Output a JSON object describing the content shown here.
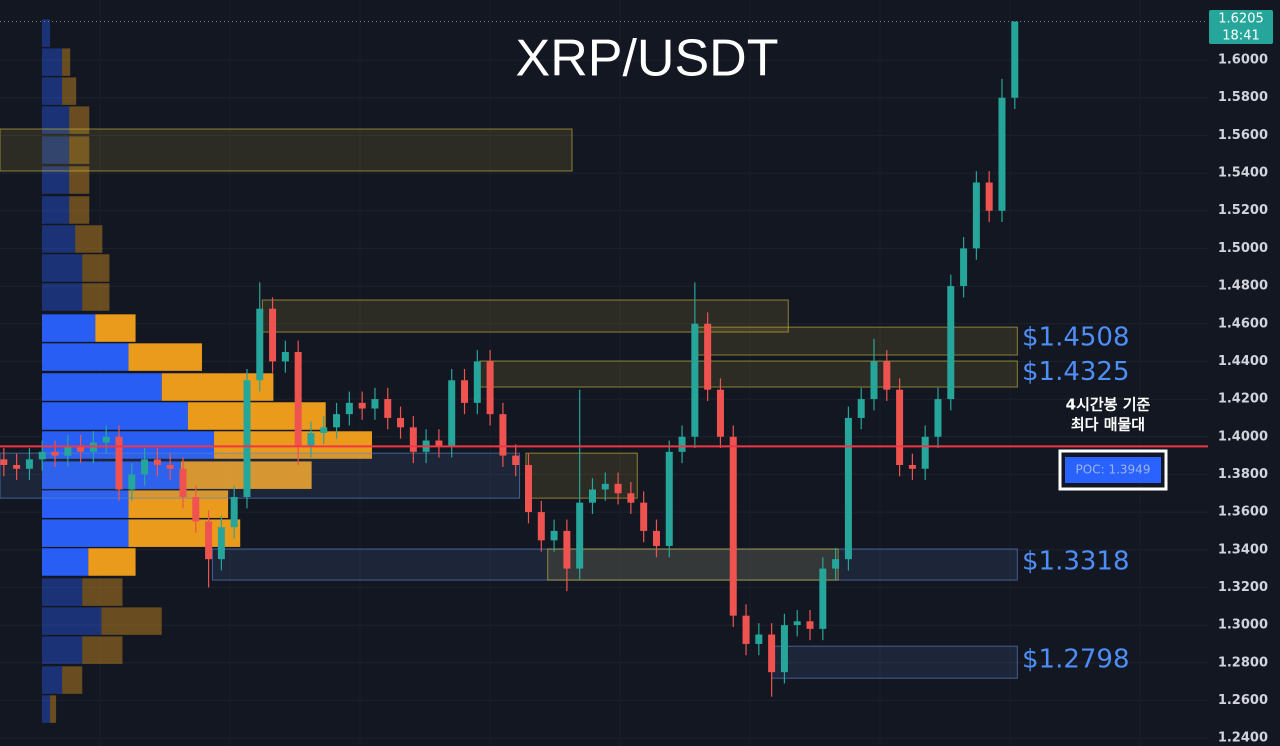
{
  "chart_data": {
    "type": "candlestick",
    "title": "XRP/USDT",
    "open": [
      1.388,
      1.385,
      1.383,
      1.388,
      1.392,
      1.39,
      1.395,
      1.392,
      1.397,
      1.4,
      1.372,
      1.38,
      1.388,
      1.385,
      1.383,
      1.368,
      1.355,
      1.335,
      1.352,
      1.368,
      1.43,
      1.468,
      1.44,
      1.445,
      1.395,
      1.402,
      1.405,
      1.412,
      1.418,
      1.415,
      1.42,
      1.41,
      1.405,
      1.392,
      1.398,
      1.395,
      1.43,
      1.418,
      1.44,
      1.412,
      1.39,
      1.385,
      1.36,
      1.345,
      1.35,
      1.33,
      1.365,
      1.372,
      1.375,
      1.37,
      1.365,
      1.35,
      1.342,
      1.392,
      1.4,
      1.46,
      1.425,
      1.4,
      1.305,
      1.29,
      1.295,
      1.275,
      1.3,
      1.302,
      1.298,
      1.33,
      1.335,
      1.41,
      1.42,
      1.44,
      1.425,
      1.385,
      1.383,
      1.4,
      1.42,
      1.48,
      1.5,
      1.535,
      1.52,
      1.58
    ],
    "high": [
      1.394,
      1.391,
      1.394,
      1.398,
      1.398,
      1.401,
      1.401,
      1.403,
      1.406,
      1.406,
      1.386,
      1.394,
      1.394,
      1.391,
      1.389,
      1.374,
      1.361,
      1.358,
      1.374,
      1.436,
      1.482,
      1.474,
      1.451,
      1.451,
      1.408,
      1.411,
      1.418,
      1.424,
      1.424,
      1.426,
      1.426,
      1.416,
      1.411,
      1.404,
      1.404,
      1.436,
      1.436,
      1.446,
      1.446,
      1.418,
      1.396,
      1.391,
      1.366,
      1.356,
      1.356,
      1.425,
      1.378,
      1.381,
      1.381,
      1.376,
      1.371,
      1.356,
      1.398,
      1.406,
      1.482,
      1.466,
      1.431,
      1.406,
      1.311,
      1.301,
      1.301,
      1.306,
      1.308,
      1.308,
      1.336,
      1.341,
      1.416,
      1.426,
      1.452,
      1.446,
      1.431,
      1.391,
      1.406,
      1.426,
      1.486,
      1.506,
      1.541,
      1.541,
      1.59,
      1.6205
    ],
    "low": [
      1.379,
      1.377,
      1.377,
      1.382,
      1.384,
      1.384,
      1.386,
      1.386,
      1.391,
      1.366,
      1.366,
      1.374,
      1.379,
      1.377,
      1.362,
      1.349,
      1.32,
      1.329,
      1.346,
      1.362,
      1.424,
      1.434,
      1.434,
      1.385,
      1.389,
      1.396,
      1.399,
      1.406,
      1.409,
      1.409,
      1.404,
      1.399,
      1.386,
      1.386,
      1.389,
      1.389,
      1.412,
      1.412,
      1.406,
      1.384,
      1.379,
      1.354,
      1.339,
      1.339,
      1.318,
      1.324,
      1.359,
      1.366,
      1.364,
      1.359,
      1.344,
      1.336,
      1.336,
      1.386,
      1.394,
      1.419,
      1.394,
      1.299,
      1.284,
      1.284,
      1.262,
      1.269,
      1.294,
      1.292,
      1.292,
      1.324,
      1.329,
      1.404,
      1.414,
      1.419,
      1.379,
      1.377,
      1.377,
      1.394,
      1.414,
      1.474,
      1.494,
      1.514,
      1.514,
      1.574
    ],
    "close": [
      1.385,
      1.383,
      1.388,
      1.392,
      1.39,
      1.395,
      1.392,
      1.397,
      1.4,
      1.372,
      1.38,
      1.388,
      1.385,
      1.383,
      1.368,
      1.355,
      1.335,
      1.352,
      1.368,
      1.43,
      1.468,
      1.44,
      1.445,
      1.395,
      1.402,
      1.405,
      1.412,
      1.418,
      1.415,
      1.42,
      1.41,
      1.405,
      1.392,
      1.398,
      1.395,
      1.43,
      1.418,
      1.44,
      1.412,
      1.39,
      1.385,
      1.36,
      1.345,
      1.35,
      1.33,
      1.365,
      1.372,
      1.375,
      1.37,
      1.365,
      1.35,
      1.342,
      1.392,
      1.4,
      1.46,
      1.425,
      1.4,
      1.305,
      1.29,
      1.295,
      1.275,
      1.3,
      1.302,
      1.298,
      1.33,
      1.335,
      1.41,
      1.42,
      1.44,
      1.425,
      1.385,
      1.383,
      1.4,
      1.42,
      1.48,
      1.5,
      1.535,
      1.52,
      1.58,
      1.6205
    ],
    "up_color": "#26a69a",
    "down_color": "#ef5350",
    "xlim": [
      -0.3,
      94.1
    ],
    "ylim": [
      1.2358,
      1.6319
    ],
    "yticks": [
      {
        "value": 1.24,
        "label": "1.2400"
      },
      {
        "value": 1.26,
        "label": "1.2600"
      },
      {
        "value": 1.28,
        "label": "1.2800"
      },
      {
        "value": 1.3,
        "label": "1.3000"
      },
      {
        "value": 1.32,
        "label": "1.3200"
      },
      {
        "value": 1.34,
        "label": "1.3400"
      },
      {
        "value": 1.36,
        "label": "1.3600"
      },
      {
        "value": 1.38,
        "label": "1.3800"
      },
      {
        "value": 1.4,
        "label": "1.4000"
      },
      {
        "value": 1.42,
        "label": "1.4200"
      },
      {
        "value": 1.44,
        "label": "1.4400"
      },
      {
        "value": 1.46,
        "label": "1.4600"
      },
      {
        "value": 1.48,
        "label": "1.4800"
      },
      {
        "value": 1.5,
        "label": "1.5000"
      },
      {
        "value": 1.52,
        "label": "1.5200"
      },
      {
        "value": 1.54,
        "label": "1.5400"
      },
      {
        "value": 1.56,
        "label": "1.5600"
      },
      {
        "value": 1.58,
        "label": "1.5800"
      },
      {
        "value": 1.6,
        "label": "1.6000"
      }
    ],
    "grid": true,
    "last_price": {
      "value": 1.6205,
      "label": "1.6205",
      "time": "18:41",
      "color": "#26a69a"
    },
    "poc": {
      "value": 1.3949,
      "label": "POC: 1.3949",
      "color": "#f23645"
    },
    "note": [
      "4시간봉 기준",
      "최다 매물대"
    ],
    "annotations": [
      {
        "value": 1.4508,
        "label": "$1.4508"
      },
      {
        "value": 1.4325,
        "label": "$1.4325"
      },
      {
        "value": 1.3318,
        "label": "$1.3318"
      },
      {
        "value": 1.2798,
        "label": "$1.2798"
      }
    ],
    "annotation_color": "#4d8ef7",
    "zones": [
      {
        "top": 1.5634,
        "bottom": 1.5411,
        "from": -0.3,
        "to": 44.4,
        "color": "#c8b43c"
      },
      {
        "top": 1.4726,
        "bottom": 1.4556,
        "from": 20.2,
        "to": 61.3,
        "color": "#c8b43c"
      },
      {
        "top": 1.4582,
        "bottom": 1.4434,
        "from": 54.2,
        "to": 79.2,
        "color": "#c8b43c"
      },
      {
        "top": 1.4402,
        "bottom": 1.4264,
        "from": 37.2,
        "to": 79.2,
        "color": "#c8b43c"
      },
      {
        "top": 1.3913,
        "bottom": 1.3674,
        "from": -0.3,
        "to": 40.3,
        "color": "#5a82c8"
      },
      {
        "top": 1.3913,
        "bottom": 1.3674,
        "from": 40.8,
        "to": 49.5,
        "color": "#c8b43c"
      },
      {
        "top": 1.3404,
        "bottom": 1.3239,
        "from": 16.3,
        "to": 79.2,
        "color": "#5a82c8"
      },
      {
        "top": 1.3404,
        "bottom": 1.3239,
        "from": 42.5,
        "to": 65.2,
        "color": "#c8b43c"
      },
      {
        "top": 1.2888,
        "bottom": 1.2718,
        "from": 60.0,
        "to": 79.2,
        "color": "#5a82c8"
      }
    ],
    "volume_profile": {
      "levels": [
        1.6143,
        1.5989,
        1.5835,
        1.5681,
        1.5522,
        1.5363,
        1.5204,
        1.505,
        1.4896,
        1.4742,
        1.4577,
        1.4423,
        1.4264,
        1.411,
        1.3956,
        1.3796,
        1.3642,
        1.3488,
        1.3335,
        1.3175,
        1.3021,
        1.2867,
        1.2708,
        1.2554
      ],
      "buy": [
        8,
        20,
        20,
        27,
        27,
        27,
        27,
        33,
        40,
        40,
        53,
        86,
        119,
        145,
        171,
        138,
        86,
        86,
        46,
        40,
        59,
        40,
        20,
        8
      ],
      "sell": [
        0,
        8,
        14,
        20,
        20,
        20,
        20,
        27,
        27,
        27,
        40,
        73,
        111,
        137,
        157,
        130,
        99,
        111,
        47,
        40,
        60,
        40,
        20,
        6
      ],
      "buy_color": "#2962ff",
      "sell_color": "#f7a21b",
      "value_area": [
        1.3335,
        1.4577
      ]
    }
  }
}
